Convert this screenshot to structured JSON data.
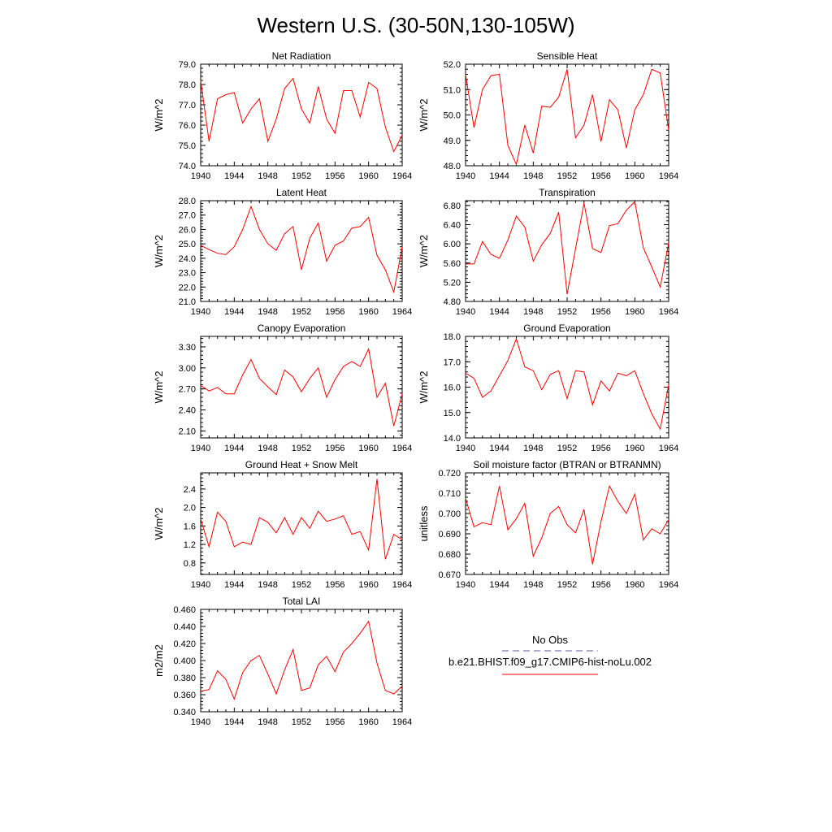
{
  "title": "Western U.S. (30-50N,130-105W)",
  "colors": {
    "model": "#ff0000",
    "obs": "#5b5b9b",
    "axis": "#000000"
  },
  "legend": {
    "obs_label": "No Obs",
    "model_label": "b.e21.BHIST.f09_g17.CMIP6-hist-noLu.002"
  },
  "chart_data": [
    {
      "type": "line",
      "title": "Net Radiation",
      "ylabel": "W/m^2",
      "xlim": [
        1940,
        1964
      ],
      "ylim": [
        74.0,
        79.0
      ],
      "xticks": [
        "1940",
        "1944",
        "1948",
        "1952",
        "1956",
        "1960",
        "1964"
      ],
      "yticks": [
        "74.0",
        "75.0",
        "76.0",
        "77.0",
        "78.0",
        "79.0"
      ],
      "x": [
        1940,
        1941,
        1942,
        1943,
        1944,
        1945,
        1946,
        1947,
        1948,
        1949,
        1950,
        1951,
        1952,
        1953,
        1954,
        1955,
        1956,
        1957,
        1958,
        1959,
        1960,
        1961,
        1962,
        1963,
        1964
      ],
      "series": [
        {
          "values": [
            78.2,
            75.2,
            77.3,
            77.5,
            77.6,
            76.1,
            76.8,
            77.3,
            75.2,
            76.3,
            77.8,
            78.3,
            76.8,
            76.1,
            77.9,
            76.3,
            75.6,
            77.7,
            77.7,
            76.4,
            78.1,
            77.8,
            75.9,
            74.7,
            75.5
          ]
        }
      ]
    },
    {
      "type": "line",
      "title": "Sensible Heat",
      "ylabel": "W/m^2",
      "xlim": [
        1940,
        1964
      ],
      "ylim": [
        48.0,
        52.0
      ],
      "xticks": [
        "1940",
        "1944",
        "1948",
        "1952",
        "1956",
        "1960",
        "1964"
      ],
      "yticks": [
        "48.0",
        "49.0",
        "50.0",
        "51.0",
        "52.0"
      ],
      "x": [
        1940,
        1941,
        1942,
        1943,
        1944,
        1945,
        1946,
        1947,
        1948,
        1949,
        1950,
        1951,
        1952,
        1953,
        1954,
        1955,
        1956,
        1957,
        1958,
        1959,
        1960,
        1961,
        1962,
        1963,
        1964
      ],
      "series": [
        {
          "values": [
            51.6,
            49.5,
            51.0,
            51.55,
            51.6,
            48.8,
            48.05,
            49.6,
            48.5,
            50.35,
            50.3,
            50.7,
            51.8,
            49.1,
            49.6,
            50.8,
            48.95,
            50.6,
            50.2,
            48.7,
            50.2,
            50.8,
            51.8,
            51.65,
            49.4
          ]
        }
      ]
    },
    {
      "type": "line",
      "title": "Latent Heat",
      "ylabel": "W/m^2",
      "xlim": [
        1940,
        1964
      ],
      "ylim": [
        21.0,
        28.0
      ],
      "xticks": [
        "1940",
        "1944",
        "1948",
        "1952",
        "1956",
        "1960",
        "1964"
      ],
      "yticks": [
        "21.0",
        "22.0",
        "23.0",
        "24.0",
        "25.0",
        "26.0",
        "27.0",
        "28.0"
      ],
      "x": [
        1940,
        1941,
        1942,
        1943,
        1944,
        1945,
        1946,
        1947,
        1948,
        1949,
        1950,
        1951,
        1952,
        1953,
        1954,
        1955,
        1956,
        1957,
        1958,
        1959,
        1960,
        1961,
        1962,
        1963,
        1964
      ],
      "series": [
        {
          "values": [
            24.9,
            24.6,
            24.35,
            24.25,
            24.8,
            26.0,
            27.6,
            26.0,
            25.0,
            24.55,
            25.7,
            26.2,
            23.2,
            25.4,
            26.45,
            23.8,
            24.9,
            25.2,
            26.1,
            26.2,
            26.85,
            24.2,
            23.2,
            21.65,
            24.8
          ]
        }
      ]
    },
    {
      "type": "line",
      "title": "Transpiration",
      "ylabel": "W/m^2",
      "xlim": [
        1940,
        1964
      ],
      "ylim": [
        4.8,
        6.9
      ],
      "xticks": [
        "1940",
        "1944",
        "1948",
        "1952",
        "1956",
        "1960",
        "1964"
      ],
      "yticks": [
        "4.80",
        "5.20",
        "5.60",
        "6.00",
        "6.40",
        "6.80"
      ],
      "x": [
        1940,
        1941,
        1942,
        1943,
        1944,
        1945,
        1946,
        1947,
        1948,
        1949,
        1950,
        1951,
        1952,
        1953,
        1954,
        1955,
        1956,
        1957,
        1958,
        1959,
        1960,
        1961,
        1962,
        1963,
        1964
      ],
      "series": [
        {
          "values": [
            5.58,
            5.58,
            6.05,
            5.78,
            5.7,
            6.08,
            6.58,
            6.35,
            5.64,
            5.98,
            6.22,
            6.66,
            4.95,
            5.9,
            6.85,
            5.9,
            5.82,
            6.38,
            6.42,
            6.7,
            6.88,
            5.92,
            5.52,
            5.1,
            6.02
          ]
        }
      ]
    },
    {
      "type": "line",
      "title": "Canopy Evaporation",
      "ylabel": "W/m^2",
      "xlim": [
        1940,
        1964
      ],
      "ylim": [
        2.0,
        3.45
      ],
      "xticks": [
        "1940",
        "1944",
        "1948",
        "1952",
        "1956",
        "1960",
        "1964"
      ],
      "yticks": [
        "2.10",
        "2.40",
        "2.70",
        "3.00",
        "3.30"
      ],
      "x": [
        1940,
        1941,
        1942,
        1943,
        1944,
        1945,
        1946,
        1947,
        1948,
        1949,
        1950,
        1951,
        1952,
        1953,
        1954,
        1955,
        1956,
        1957,
        1958,
        1959,
        1960,
        1961,
        1962,
        1963,
        1964
      ],
      "series": [
        {
          "values": [
            2.75,
            2.67,
            2.72,
            2.63,
            2.63,
            2.9,
            3.12,
            2.85,
            2.73,
            2.62,
            2.97,
            2.87,
            2.66,
            2.85,
            3.0,
            2.58,
            2.83,
            3.02,
            3.09,
            3.02,
            3.27,
            2.58,
            2.78,
            2.17,
            2.63
          ]
        }
      ]
    },
    {
      "type": "line",
      "title": "Ground Evaporation",
      "ylabel": "W/m^2",
      "xlim": [
        1940,
        1964
      ],
      "ylim": [
        14.0,
        18.0
      ],
      "xticks": [
        "1940",
        "1944",
        "1948",
        "1952",
        "1956",
        "1960",
        "1964"
      ],
      "yticks": [
        "14.0",
        "15.0",
        "16.0",
        "17.0",
        "18.0"
      ],
      "x": [
        1940,
        1941,
        1942,
        1943,
        1944,
        1945,
        1946,
        1947,
        1948,
        1949,
        1950,
        1951,
        1952,
        1953,
        1954,
        1955,
        1956,
        1957,
        1958,
        1959,
        1960,
        1961,
        1962,
        1963,
        1964
      ],
      "series": [
        {
          "values": [
            16.55,
            16.35,
            15.6,
            15.85,
            16.45,
            17.05,
            17.9,
            16.8,
            16.65,
            15.9,
            16.5,
            16.65,
            15.55,
            16.65,
            16.6,
            15.3,
            16.25,
            15.85,
            16.55,
            16.45,
            16.65,
            15.75,
            14.95,
            14.35,
            16.1
          ]
        }
      ]
    },
    {
      "type": "line",
      "title": "Ground Heat + Snow Melt",
      "ylabel": "W/m^2",
      "xlim": [
        1940,
        1964
      ],
      "ylim": [
        0.55,
        2.75
      ],
      "xticks": [
        "1940",
        "1944",
        "1948",
        "1952",
        "1956",
        "1960",
        "1964"
      ],
      "yticks": [
        "0.8",
        "1.2",
        "1.6",
        "2.0",
        "2.4"
      ],
      "x": [
        1940,
        1941,
        1942,
        1943,
        1944,
        1945,
        1946,
        1947,
        1948,
        1949,
        1950,
        1951,
        1952,
        1953,
        1954,
        1955,
        1956,
        1957,
        1958,
        1959,
        1960,
        1961,
        1962,
        1963,
        1964
      ],
      "series": [
        {
          "values": [
            1.75,
            1.15,
            1.9,
            1.7,
            1.15,
            1.25,
            1.2,
            1.78,
            1.68,
            1.45,
            1.78,
            1.42,
            1.78,
            1.55,
            1.92,
            1.7,
            1.75,
            1.82,
            1.42,
            1.48,
            1.08,
            2.62,
            0.88,
            1.42,
            1.3
          ]
        }
      ]
    },
    {
      "type": "line",
      "title": "Soil moisture factor (BTRAN or BTRANMN)",
      "ylabel": "unitless",
      "xlim": [
        1940,
        1964
      ],
      "ylim": [
        0.67,
        0.72
      ],
      "xticks": [
        "1940",
        "1944",
        "1948",
        "1952",
        "1956",
        "1960",
        "1964"
      ],
      "yticks": [
        "0.670",
        "0.680",
        "0.690",
        "0.700",
        "0.710",
        "0.720"
      ],
      "x": [
        1940,
        1941,
        1942,
        1943,
        1944,
        1945,
        1946,
        1947,
        1948,
        1949,
        1950,
        1951,
        1952,
        1953,
        1954,
        1955,
        1956,
        1957,
        1958,
        1959,
        1960,
        1961,
        1962,
        1963,
        1964
      ],
      "series": [
        {
          "values": [
            0.7075,
            0.6935,
            0.6955,
            0.6945,
            0.7135,
            0.692,
            0.6975,
            0.705,
            0.679,
            0.688,
            0.7,
            0.7035,
            0.6945,
            0.6905,
            0.702,
            0.675,
            0.696,
            0.7135,
            0.706,
            0.7,
            0.7095,
            0.687,
            0.6925,
            0.69,
            0.697
          ]
        }
      ]
    },
    {
      "type": "line",
      "title": "Total LAI",
      "ylabel": "m2/m2",
      "xlim": [
        1940,
        1964
      ],
      "ylim": [
        0.34,
        0.46
      ],
      "xticks": [
        "1940",
        "1944",
        "1948",
        "1952",
        "1956",
        "1960",
        "1964"
      ],
      "yticks": [
        "0.340",
        "0.360",
        "0.380",
        "0.400",
        "0.420",
        "0.440",
        "0.460"
      ],
      "x": [
        1940,
        1941,
        1942,
        1943,
        1944,
        1945,
        1946,
        1947,
        1948,
        1949,
        1950,
        1951,
        1952,
        1953,
        1954,
        1955,
        1956,
        1957,
        1958,
        1959,
        1960,
        1961,
        1962,
        1963,
        1964
      ],
      "series": [
        {
          "values": [
            0.364,
            0.366,
            0.388,
            0.378,
            0.355,
            0.386,
            0.4,
            0.406,
            0.384,
            0.361,
            0.389,
            0.413,
            0.365,
            0.368,
            0.395,
            0.405,
            0.387,
            0.41,
            0.42,
            0.432,
            0.446,
            0.397,
            0.365,
            0.361,
            0.37
          ]
        }
      ]
    }
  ]
}
